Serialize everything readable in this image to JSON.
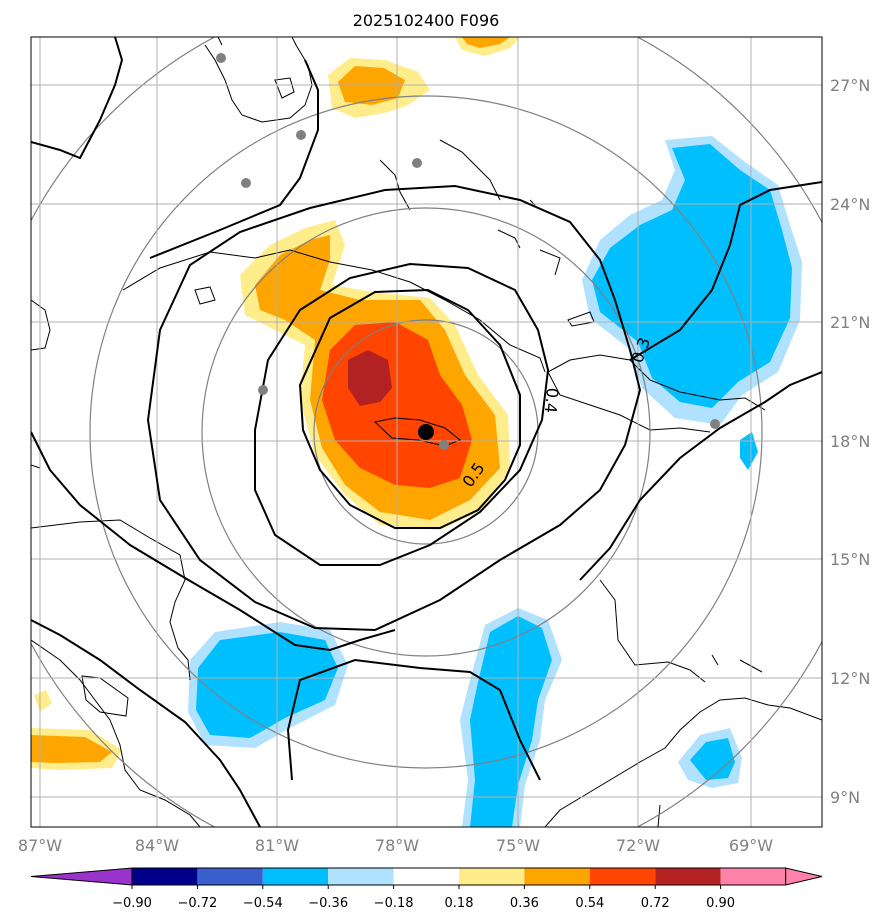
{
  "chart_data": {
    "type": "map",
    "title": "2025102400 F096",
    "x_ticks": [
      "87°W",
      "84°W",
      "81°W",
      "78°W",
      "75°W",
      "72°W",
      "69°W"
    ],
    "y_ticks": [
      "27°N",
      "24°N",
      "21°N",
      "18°N",
      "15°N",
      "12°N",
      "9°N"
    ],
    "contour_labels": [
      "0.3",
      "0.4",
      "0.5"
    ],
    "colorbar": {
      "ticks": [
        "−0.90",
        "−0.72",
        "−0.54",
        "−0.36",
        "−0.18",
        "0.18",
        "0.36",
        "0.54",
        "0.72",
        "0.90"
      ],
      "colors": [
        "#9933cc",
        "#00008b",
        "#3a5fcd",
        "#00bfff",
        "#b0e2ff",
        "#ffffff",
        "#ffec8b",
        "#ffa500",
        "#ff4500",
        "#b22222",
        "#ff82ab"
      ]
    },
    "storm_center": {
      "lon": -77.5,
      "lat": 18.2
    },
    "grid": true
  }
}
